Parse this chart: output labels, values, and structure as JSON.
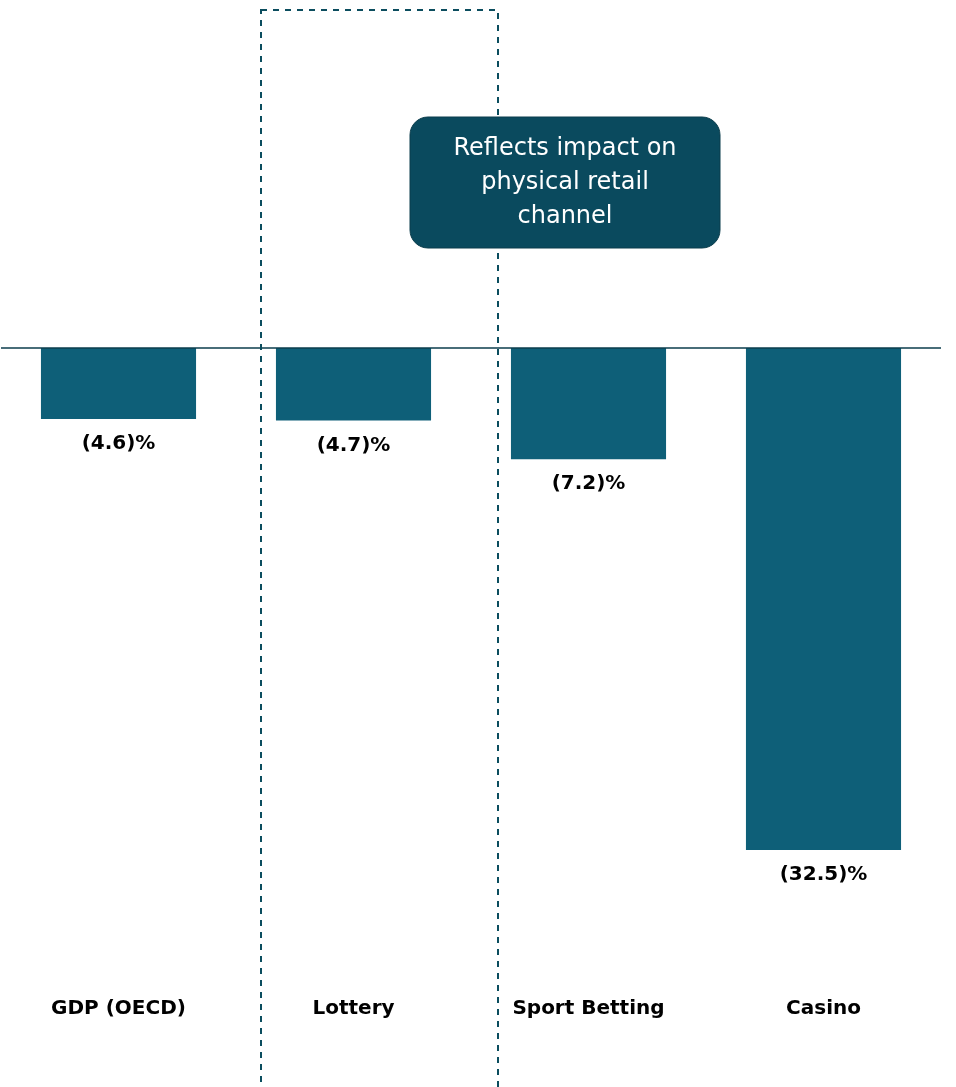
{
  "chart_data": {
    "type": "bar",
    "categories": [
      "GDP (OECD)",
      "Lottery",
      "Sport Betting",
      "Casino"
    ],
    "values": [
      -4.6,
      -4.7,
      -7.2,
      -32.5
    ],
    "value_labels": [
      "(4.6)%",
      "(4.7)%",
      "(7.2)%",
      "(32.5)%"
    ],
    "color": "#0e5f78",
    "ref_lines": [
      {
        "axis": "y",
        "value": 0,
        "color": "#0b3d4c"
      }
    ],
    "annotations": [
      "Reflects impact on physical retail channel"
    ],
    "grid": false
  }
}
